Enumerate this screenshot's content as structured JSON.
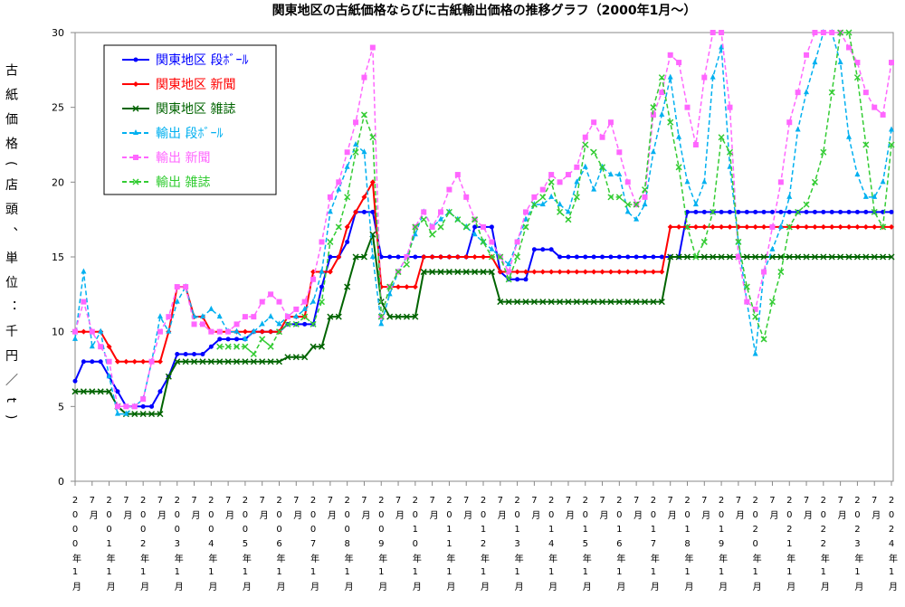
{
  "chart_data": {
    "type": "line",
    "title": "関東地区の古紙価格ならびに古紙輸出価格の推移グラフ（2000年1月～）",
    "ylabel": "古紙価格(店頭、単位：千円／t)",
    "categories": [
      "2000年1月",
      null,
      "7月",
      null,
      "2001年1月",
      null,
      "7月",
      null,
      "2002年1月",
      null,
      "7月",
      null,
      "2003年1月",
      null,
      "7月",
      null,
      "2004年1月",
      null,
      "7月",
      null,
      "2005年1月",
      null,
      "7月",
      null,
      "2006年1月",
      null,
      "7月",
      null,
      "2007年1月",
      null,
      "7月",
      null,
      "2008年1月",
      null,
      "7月",
      null,
      "2009年1月",
      null,
      "7月",
      null,
      "2010年1月",
      null,
      "7月",
      null,
      "2011年1月",
      null,
      "7月",
      null,
      "2012年1月",
      null,
      "7月",
      null,
      "2013年1月",
      null,
      "7月",
      null,
      "2014年1月",
      null,
      "7月",
      null,
      "2015年1月",
      null,
      "7月",
      null,
      "2016年1月",
      null,
      "7月",
      null,
      "2017年1月",
      null,
      "7月",
      null,
      "2018年1月",
      null,
      "7月",
      null,
      "2019年1月",
      null,
      "7月",
      null,
      "2020年1月",
      null,
      "7月",
      null,
      "2021年1月",
      null,
      "7月",
      null,
      "2022年1月",
      null,
      "7月",
      null,
      "2023年1月",
      null,
      "7月",
      null,
      "2024年1月"
    ],
    "ylim": [
      0,
      30
    ],
    "yticks": [
      0,
      5,
      10,
      15,
      20,
      25,
      30
    ],
    "grid": false,
    "legend": "upper left",
    "series": [
      {
        "name": "関東地区 段ﾎﾞｰﾙ",
        "color": "#0000ff",
        "marker": "circle",
        "dashed": false,
        "values": [
          6.7,
          8,
          8,
          8,
          7,
          6,
          5,
          5,
          5,
          5,
          6,
          7,
          8.5,
          8.5,
          8.5,
          8.5,
          9,
          9.5,
          9.5,
          9.5,
          9.5,
          10,
          10,
          10,
          10,
          10.5,
          10.5,
          10.5,
          10.5,
          13,
          15,
          15,
          16,
          18,
          18,
          18,
          15,
          15,
          15,
          15,
          15,
          15,
          15,
          15,
          15,
          15,
          15,
          17,
          17,
          17,
          14,
          13.5,
          13.5,
          13.5,
          15.5,
          15.5,
          15.5,
          15,
          15,
          15,
          15,
          15,
          15,
          15,
          15,
          15,
          15,
          15,
          15,
          15,
          15,
          15,
          18,
          18,
          18,
          18,
          18,
          18,
          18,
          18,
          18,
          18,
          18,
          18,
          18,
          18,
          18,
          18,
          18,
          18,
          18,
          18,
          18,
          18,
          18,
          18,
          18
        ]
      },
      {
        "name": "関東地区 新聞",
        "color": "#ff0000",
        "marker": "diamond",
        "dashed": false,
        "values": [
          10,
          10,
          10,
          10,
          9,
          8,
          8,
          8,
          8,
          8,
          8,
          10,
          13,
          13,
          11,
          11,
          10,
          10,
          10,
          10,
          10,
          10,
          10,
          10,
          10,
          11,
          11,
          11,
          14,
          14,
          14,
          15,
          17,
          18,
          19,
          20,
          13,
          13,
          13,
          13,
          13,
          15,
          15,
          15,
          15,
          15,
          15,
          15,
          15,
          15,
          14,
          14,
          14,
          14,
          14,
          14,
          14,
          14,
          14,
          14,
          14,
          14,
          14,
          14,
          14,
          14,
          14,
          14,
          14,
          14,
          17,
          17,
          17,
          17,
          17,
          17,
          17,
          17,
          17,
          17,
          17,
          17,
          17,
          17,
          17,
          17,
          17,
          17,
          17,
          17,
          17,
          17,
          17,
          17,
          17,
          17,
          17
        ]
      },
      {
        "name": "関東地区 雑誌",
        "color": "#006400",
        "marker": "x",
        "dashed": false,
        "values": [
          6,
          6,
          6,
          6,
          6,
          5,
          4.5,
          4.5,
          4.5,
          4.5,
          4.5,
          7,
          8,
          8,
          8,
          8,
          8,
          8,
          8,
          8,
          8,
          8,
          8,
          8,
          8,
          8.3,
          8.3,
          8.3,
          9,
          9,
          11,
          11,
          13,
          15,
          15,
          16.5,
          12,
          11,
          11,
          11,
          11,
          14,
          14,
          14,
          14,
          14,
          14,
          14,
          14,
          14,
          12,
          12,
          12,
          12,
          12,
          12,
          12,
          12,
          12,
          12,
          12,
          12,
          12,
          12,
          12,
          12,
          12,
          12,
          12,
          12,
          15,
          15,
          15,
          15,
          15,
          15,
          15,
          15,
          15,
          15,
          15,
          15,
          15,
          15,
          15,
          15,
          15,
          15,
          15,
          15,
          15,
          15,
          15,
          15,
          15,
          15,
          15
        ]
      },
      {
        "name": "輸出 段ﾎﾞｰﾙ",
        "color": "#00b0f0",
        "marker": "triangle",
        "dashed": true,
        "values": [
          9.5,
          14,
          9,
          10,
          7,
          4.5,
          4.5,
          5,
          5.5,
          8,
          11,
          10,
          12,
          13,
          11,
          11,
          11.5,
          11,
          10,
          10,
          9.5,
          10,
          10.5,
          11,
          10.5,
          11,
          11,
          11.5,
          12,
          14,
          18,
          19.5,
          21,
          22.5,
          22,
          15,
          10.5,
          12.5,
          14,
          15,
          16.5,
          18,
          17,
          17.5,
          18,
          17.5,
          17,
          16.5,
          16,
          15.5,
          15,
          14.5,
          16,
          17.5,
          18.5,
          18.5,
          19,
          18.5,
          18,
          20,
          21,
          19.5,
          21,
          20.5,
          20.5,
          18,
          17.5,
          18.5,
          22,
          24.5,
          27,
          23,
          20,
          18.5,
          20,
          27,
          29,
          21,
          16,
          12,
          8.5,
          14,
          15.5,
          17,
          19,
          23.5,
          26,
          28,
          30,
          30,
          28,
          23,
          20.5,
          19,
          19,
          20,
          23.5
        ]
      },
      {
        "name": "輸出 新聞",
        "color": "#ff66ff",
        "marker": "square",
        "dashed": true,
        "values": [
          10,
          12,
          10,
          9,
          8,
          5,
          5,
          5,
          5.5,
          8,
          10,
          11,
          13,
          13,
          10.5,
          10.5,
          10,
          10,
          10,
          10.5,
          11,
          11,
          12,
          12.5,
          12,
          11,
          11.5,
          12,
          13.5,
          16,
          19,
          20,
          22,
          24,
          27,
          29,
          11,
          13,
          14,
          15,
          17,
          18,
          17,
          18,
          19.5,
          20.5,
          19,
          17.5,
          17,
          16,
          15,
          14,
          16,
          18,
          19,
          19.5,
          20.5,
          20,
          20.5,
          21,
          23,
          24,
          23,
          24,
          22,
          20,
          18.5,
          19,
          24.5,
          26,
          28.5,
          28,
          25,
          22.5,
          27,
          30,
          30,
          25,
          15,
          12,
          11.5,
          14,
          17,
          20,
          24,
          26,
          28.5,
          30,
          30,
          30,
          30,
          29,
          28,
          26,
          25,
          24.5,
          28
        ]
      },
      {
        "name": "輸出 雑誌",
        "color": "#33cc33",
        "marker": "x",
        "dashed": true,
        "values": [
          null,
          null,
          null,
          null,
          null,
          null,
          null,
          null,
          null,
          null,
          null,
          null,
          null,
          null,
          null,
          null,
          null,
          9,
          9,
          9,
          9,
          8.5,
          9.5,
          9,
          10,
          10.5,
          10.5,
          11,
          10.5,
          12,
          16,
          17,
          19,
          22,
          24.5,
          23,
          11,
          13,
          14,
          14.5,
          17,
          17.5,
          16.5,
          17,
          18,
          17.5,
          17,
          17.5,
          16,
          15,
          15,
          13.5,
          15,
          17,
          18.5,
          19,
          20,
          18,
          17.5,
          19,
          22.5,
          22,
          21,
          19,
          19,
          18.5,
          18.5,
          19.5,
          25,
          27,
          24,
          21,
          17,
          15,
          16,
          18,
          23,
          22,
          16,
          13,
          11,
          9.5,
          12,
          14,
          17,
          18,
          18.5,
          20,
          22,
          26,
          30,
          30,
          27,
          22.5,
          18,
          17,
          22.5
        ]
      }
    ]
  }
}
